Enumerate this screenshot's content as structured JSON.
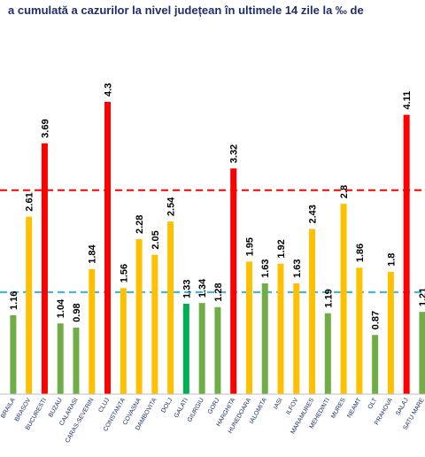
{
  "chart_data": {
    "type": "bar",
    "title": "Incidența cumulată a cazurilor la nivel județean în ultimele 14 zile la ‰ de locuitori",
    "visible_title": "a cumulată a cazurilor la nivel județean în ultimele 14 zile la ‰ de",
    "categories": [
      "BRAILA",
      "BRASOV",
      "BUCURESTI",
      "BUZAU",
      "CALARASI",
      "CARAS-SEVERIN",
      "CLUJ",
      "CONSTANTA",
      "COVASNA",
      "DAMBOVITA",
      "DOLJ",
      "GALATI",
      "GIURGIU",
      "GORJ",
      "HARGHITA",
      "HUNEDOARA",
      "IALOMITA",
      "IASI",
      "ILFOV",
      "MARAMURES",
      "MEHEDINTI",
      "MURES",
      "NEAMT",
      "OLT",
      "PRAHOVA",
      "SALAJ",
      "SATU MARE"
    ],
    "values": [
      1.16,
      2.61,
      3.69,
      1.04,
      0.98,
      1.84,
      4.3,
      1.56,
      2.28,
      2.05,
      2.54,
      1.33,
      1.34,
      1.28,
      3.32,
      1.95,
      1.63,
      1.92,
      1.63,
      2.43,
      1.19,
      2.8,
      1.86,
      0.87,
      1.8,
      4.11,
      1.21
    ],
    "value_labels": [
      "1.16",
      "2.61",
      "3.69",
      "1.04",
      "0.98",
      "1.84",
      "4.3",
      "1.56",
      "2.28",
      "2.05",
      "2.54",
      "1.33",
      "1.34",
      "1.28",
      "3.32",
      "1.95",
      "1.63",
      "1.92",
      "1.63",
      "2.43",
      "1.19",
      "2.8",
      "1.86",
      "0.87",
      "1.8",
      "4.11",
      "1.21"
    ],
    "colors": [
      "#70ad47",
      "#ffc000",
      "#ff0000",
      "#70ad47",
      "#70ad47",
      "#ffc000",
      "#ff0000",
      "#ffc000",
      "#ffc000",
      "#ffc000",
      "#ffc000",
      "#00b050",
      "#70ad47",
      "#70ad47",
      "#ff0000",
      "#ffc000",
      "#70ad47",
      "#ffc000",
      "#ffc000",
      "#ffc000",
      "#70ad47",
      "#ffc000",
      "#ffc000",
      "#70ad47",
      "#ffc000",
      "#ff0000",
      "#70ad47"
    ],
    "reference_lines": [
      {
        "value": 3.0,
        "color": "#ff0000",
        "style": "dashed"
      },
      {
        "value": 1.5,
        "color": "#2eb4e6",
        "style": "dashed"
      }
    ],
    "ylim": [
      0,
      4.3
    ],
    "grid": false,
    "legend": "none"
  }
}
